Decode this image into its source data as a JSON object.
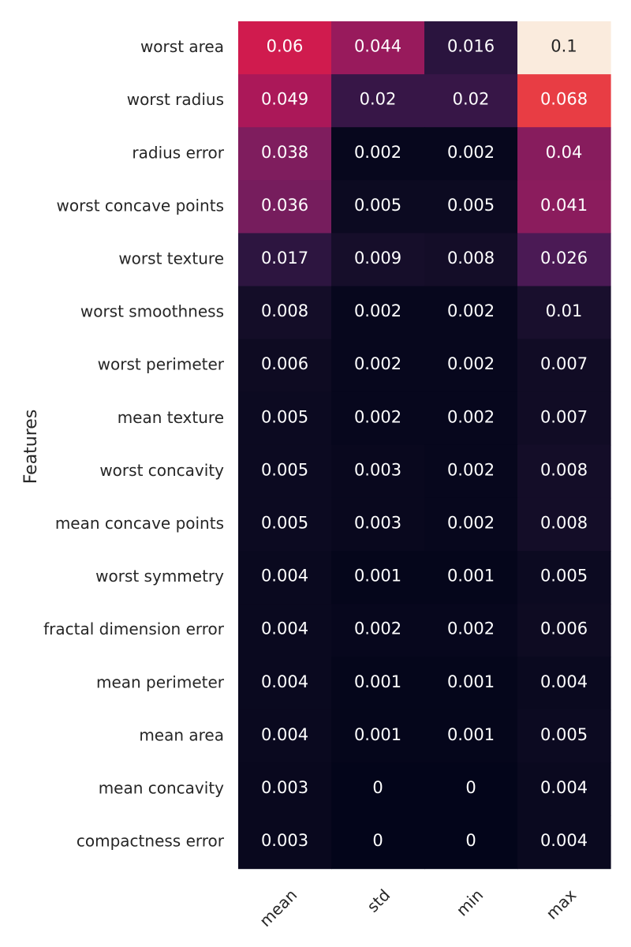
{
  "chart_data": {
    "type": "heatmap",
    "title": "",
    "xlabel": "",
    "ylabel": "Features",
    "columns": [
      "mean",
      "std",
      "min",
      "max"
    ],
    "rows": [
      "worst area",
      "worst radius",
      "radius error",
      "worst concave points",
      "worst texture",
      "worst smoothness",
      "worst perimeter",
      "mean texture",
      "worst concavity",
      "mean concave points",
      "worst symmetry",
      "fractal dimension error",
      "mean perimeter",
      "mean area",
      "mean concavity",
      "compactness error"
    ],
    "values": [
      [
        0.06,
        0.044,
        0.016,
        0.1
      ],
      [
        0.049,
        0.02,
        0.02,
        0.068
      ],
      [
        0.038,
        0.002,
        0.002,
        0.04
      ],
      [
        0.036,
        0.005,
        0.005,
        0.041
      ],
      [
        0.017,
        0.009,
        0.008,
        0.026
      ],
      [
        0.008,
        0.002,
        0.002,
        0.01
      ],
      [
        0.006,
        0.002,
        0.002,
        0.007
      ],
      [
        0.005,
        0.002,
        0.002,
        0.007
      ],
      [
        0.005,
        0.003,
        0.002,
        0.008
      ],
      [
        0.005,
        0.003,
        0.002,
        0.008
      ],
      [
        0.004,
        0.001,
        0.001,
        0.005
      ],
      [
        0.004,
        0.002,
        0.002,
        0.006
      ],
      [
        0.004,
        0.001,
        0.001,
        0.004
      ],
      [
        0.004,
        0.001,
        0.001,
        0.005
      ],
      [
        0.003,
        0,
        0,
        0.004
      ],
      [
        0.003,
        0,
        0,
        0.004
      ]
    ],
    "vmin": 0,
    "vmax": 0.1,
    "colormap": "rocket",
    "colorbar": false,
    "grid": false
  }
}
